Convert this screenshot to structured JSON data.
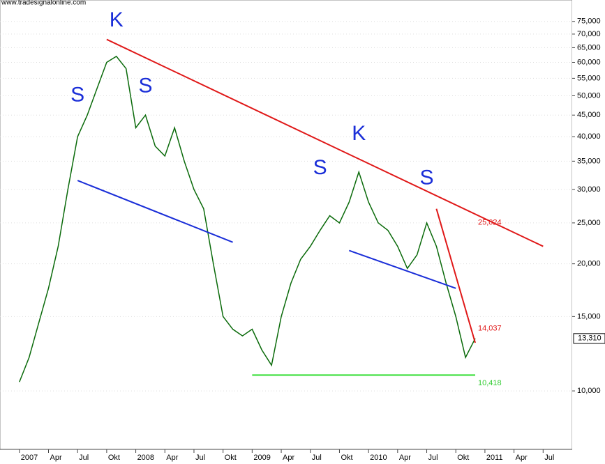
{
  "chart_data": {
    "type": "line",
    "source": "www.tradesignalonline.com",
    "log_scale": true,
    "grid": true,
    "xlim": [
      "2006-11",
      "2011-10"
    ],
    "xticks": [
      {
        "value": "2007-01",
        "label": "2007"
      },
      {
        "value": "2007-04",
        "label": "Apr"
      },
      {
        "value": "2007-07",
        "label": "Jul"
      },
      {
        "value": "2007-10",
        "label": "Okt"
      },
      {
        "value": "2008-01",
        "label": "2008"
      },
      {
        "value": "2008-04",
        "label": "Apr"
      },
      {
        "value": "2008-07",
        "label": "Jul"
      },
      {
        "value": "2008-10",
        "label": "Okt"
      },
      {
        "value": "2009-01",
        "label": "2009"
      },
      {
        "value": "2009-04",
        "label": "Apr"
      },
      {
        "value": "2009-07",
        "label": "Jul"
      },
      {
        "value": "2009-10",
        "label": "Okt"
      },
      {
        "value": "2010-01",
        "label": "2010"
      },
      {
        "value": "2010-04",
        "label": "Apr"
      },
      {
        "value": "2010-07",
        "label": "Jul"
      },
      {
        "value": "2010-10",
        "label": "Okt"
      },
      {
        "value": "2011-01",
        "label": "2011"
      },
      {
        "value": "2011-04",
        "label": "Apr"
      },
      {
        "value": "2011-07",
        "label": "Jul"
      }
    ],
    "ylim": [
      7270,
      84300
    ],
    "yticks": [
      {
        "value": 10000,
        "label": "10,000"
      },
      {
        "value": 15000,
        "label": "15,000"
      },
      {
        "value": 20000,
        "label": "20,000"
      },
      {
        "value": 25000,
        "label": "25,000"
      },
      {
        "value": 30000,
        "label": "30,000"
      },
      {
        "value": 35000,
        "label": "35,000"
      },
      {
        "value": 40000,
        "label": "40,000"
      },
      {
        "value": 45000,
        "label": "45,000"
      },
      {
        "value": 50000,
        "label": "50,000"
      },
      {
        "value": 55000,
        "label": "55,000"
      },
      {
        "value": 60000,
        "label": "60,000"
      },
      {
        "value": 65000,
        "label": "65,000"
      },
      {
        "value": 70000,
        "label": "70,000"
      },
      {
        "value": 75000,
        "label": "75,000"
      }
    ],
    "x": [
      "2007-01",
      "2007-02",
      "2007-03",
      "2007-04",
      "2007-05",
      "2007-06",
      "2007-07",
      "2007-08",
      "2007-09",
      "2007-10",
      "2007-11",
      "2007-12",
      "2008-01",
      "2008-02",
      "2008-03",
      "2008-04",
      "2008-05",
      "2008-06",
      "2008-07",
      "2008-08",
      "2008-09",
      "2008-10",
      "2008-11",
      "2008-12",
      "2009-01",
      "2009-02",
      "2009-03",
      "2009-04",
      "2009-05",
      "2009-06",
      "2009-07",
      "2009-08",
      "2009-09",
      "2009-10",
      "2009-11",
      "2009-12",
      "2010-01",
      "2010-02",
      "2010-03",
      "2010-04",
      "2010-05",
      "2010-06",
      "2010-07",
      "2010-08",
      "2010-09",
      "2010-10",
      "2010-11",
      "2010-12"
    ],
    "series": [
      {
        "color": "#0a6a0a",
        "values": [
          10500,
          12000,
          14500,
          17500,
          22000,
          30000,
          40000,
          45000,
          52000,
          60000,
          62000,
          58000,
          42000,
          45000,
          38000,
          36000,
          42000,
          35000,
          30000,
          27000,
          20000,
          15000,
          14000,
          13500,
          14000,
          12500,
          11500,
          15000,
          18000,
          20500,
          22000,
          24000,
          26000,
          25000,
          28000,
          33000,
          28000,
          25000,
          24000,
          22000,
          19500,
          21000,
          25000,
          22000,
          18000,
          15000,
          12000,
          13310
        ]
      }
    ],
    "last": {
      "value": 13310,
      "label": "13,310"
    },
    "lines": [
      {
        "color": "#e01818",
        "from": {
          "x": "2007-10",
          "y": 68000
        },
        "to": {
          "x": "2011-07",
          "y": 22000
        }
      },
      {
        "color": "#e01818",
        "from": {
          "x": "2010-08",
          "y": 27000
        },
        "to": {
          "x": "2010-12",
          "y": 13000
        }
      },
      {
        "color": "#1a2ed8",
        "from": {
          "x": "2007-07",
          "y": 31500
        },
        "to": {
          "x": "2008-11",
          "y": 22500
        }
      },
      {
        "color": "#1a2ed8",
        "from": {
          "x": "2009-11",
          "y": 21500
        },
        "to": {
          "x": "2010-10",
          "y": 17500
        }
      },
      {
        "color": "#33dd33",
        "from": {
          "x": "2009-01",
          "y": 10900
        },
        "to": {
          "x": "2010-12",
          "y": 10900
        }
      }
    ],
    "labels": [
      {
        "text": "25,024",
        "color": "#e01818",
        "x": "2010-12",
        "y": 25024
      },
      {
        "text": "14,037",
        "color": "#e01818",
        "x": "2010-12",
        "y": 14037
      },
      {
        "text": "10,418",
        "color": "#33cc33",
        "x": "2010-12",
        "y": 10418
      }
    ],
    "annotations": [
      {
        "text": "S",
        "x": "2007-07",
        "y": 50000
      },
      {
        "text": "K",
        "x": "2007-11",
        "y": 75200
      },
      {
        "text": "S",
        "x": "2008-02",
        "y": 52500
      },
      {
        "text": "S",
        "x": "2009-08",
        "y": 33600
      },
      {
        "text": "K",
        "x": "2009-12",
        "y": 40500
      },
      {
        "text": "S",
        "x": "2010-07",
        "y": 31800
      }
    ]
  }
}
